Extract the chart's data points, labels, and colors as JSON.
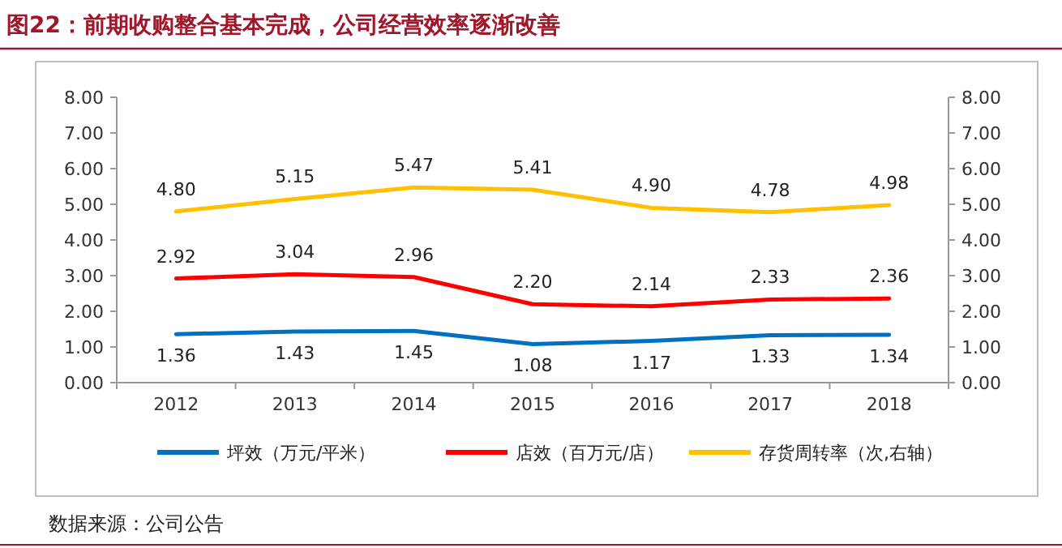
{
  "chart_data": {
    "type": "line",
    "title": "图22：前期收购整合基本完成，公司经营效率逐渐改善",
    "categories": [
      "2012",
      "2013",
      "2014",
      "2015",
      "2016",
      "2017",
      "2018"
    ],
    "series": [
      {
        "name": "坪效（万元/平米）",
        "color": "#0070c0",
        "values": [
          1.36,
          1.43,
          1.45,
          1.08,
          1.17,
          1.33,
          1.34
        ],
        "value_labels": [
          "1.36",
          "1.43",
          "1.45",
          "1.08",
          "1.17",
          "1.33",
          "1.34"
        ]
      },
      {
        "name": "店效（百万元/店）",
        "color": "#ff0000",
        "values": [
          2.92,
          3.04,
          2.96,
          2.2,
          2.14,
          2.33,
          2.36
        ],
        "value_labels": [
          "2.92",
          "3.04",
          "2.96",
          "2.20",
          "2.14",
          "2.33",
          "2.36"
        ]
      },
      {
        "name": "存货周转率（次,右轴）",
        "color": "#ffc000",
        "axis": "y2",
        "values": [
          4.8,
          5.15,
          5.47,
          5.41,
          4.9,
          4.78,
          4.98
        ],
        "value_labels": [
          "4.80",
          "5.15",
          "5.47",
          "5.41",
          "4.90",
          "4.78",
          "4.98"
        ]
      }
    ],
    "ylim": [
      0,
      8
    ],
    "yticks": [
      {
        "value": 0,
        "label": "0.00"
      },
      {
        "value": 1,
        "label": "1.00"
      },
      {
        "value": 2,
        "label": "2.00"
      },
      {
        "value": 3,
        "label": "3.00"
      },
      {
        "value": 4,
        "label": "4.00"
      },
      {
        "value": 5,
        "label": "5.00"
      },
      {
        "value": 6,
        "label": "6.00"
      },
      {
        "value": 7,
        "label": "7.00"
      },
      {
        "value": 8,
        "label": "8.00"
      }
    ],
    "y2lim": [
      0,
      8
    ],
    "y2ticks": [
      {
        "value": 0,
        "label": "0.00"
      },
      {
        "value": 1,
        "label": "1.00"
      },
      {
        "value": 2,
        "label": "2.00"
      },
      {
        "value": 3,
        "label": "3.00"
      },
      {
        "value": 4,
        "label": "4.00"
      },
      {
        "value": 5,
        "label": "5.00"
      },
      {
        "value": 6,
        "label": "6.00"
      },
      {
        "value": 7,
        "label": "7.00"
      },
      {
        "value": 8,
        "label": "8.00"
      }
    ],
    "legend": "bottom",
    "annotations": [
      "数据来源：公司公告"
    ]
  }
}
